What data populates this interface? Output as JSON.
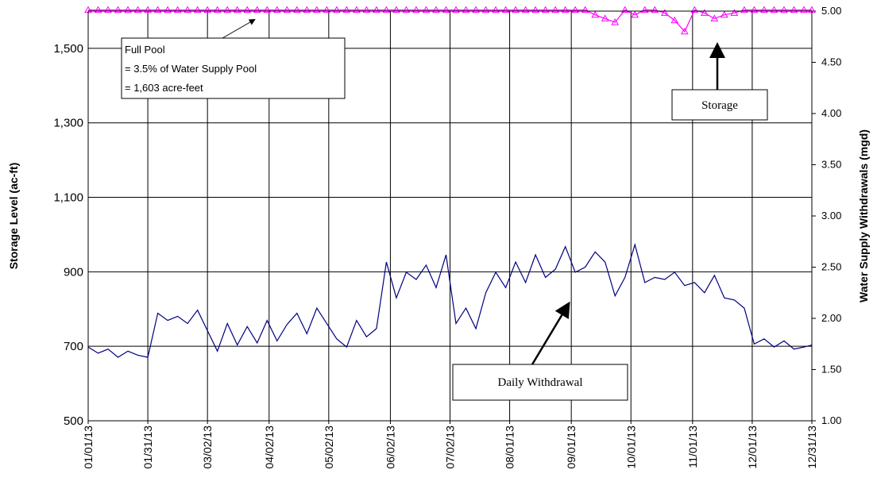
{
  "chart_data": {
    "type": "line",
    "y_label": "Storage Level (ac-ft)",
    "y2_label": "Water Supply Withdrawals (mgd)",
    "x": [
      "01/01/13",
      "01/06/13",
      "01/11/13",
      "01/16/13",
      "01/21/13",
      "01/26/13",
      "01/31/13",
      "02/05/13",
      "02/10/13",
      "02/15/13",
      "02/20/13",
      "02/25/13",
      "03/02/13",
      "03/07/13",
      "03/12/13",
      "03/17/13",
      "03/22/13",
      "03/27/13",
      "04/01/13",
      "04/06/13",
      "04/11/13",
      "04/16/13",
      "04/21/13",
      "04/26/13",
      "05/01/13",
      "05/06/13",
      "05/11/13",
      "05/16/13",
      "05/21/13",
      "05/26/13",
      "05/31/13",
      "06/05/13",
      "06/10/13",
      "06/15/13",
      "06/20/13",
      "06/25/13",
      "06/30/13",
      "07/05/13",
      "07/10/13",
      "07/15/13",
      "07/20/13",
      "07/25/13",
      "07/30/13",
      "08/04/13",
      "08/09/13",
      "08/14/13",
      "08/19/13",
      "08/24/13",
      "08/29/13",
      "09/03/13",
      "09/08/13",
      "09/13/13",
      "09/18/13",
      "09/23/13",
      "09/28/13",
      "10/03/13",
      "10/08/13",
      "10/13/13",
      "10/18/13",
      "10/23/13",
      "10/28/13",
      "11/02/13",
      "11/07/13",
      "11/12/13",
      "11/17/13",
      "11/22/13",
      "11/27/13",
      "12/02/13",
      "12/07/13",
      "12/12/13",
      "12/17/13",
      "12/22/13",
      "12/27/13",
      "12/31/13"
    ],
    "series": [
      {
        "name": "Daily Withdrawal",
        "color": "#000080",
        "axis": "y2",
        "values": [
          1.72,
          1.66,
          1.7,
          1.62,
          1.68,
          1.64,
          1.62,
          2.05,
          1.98,
          2.02,
          1.95,
          2.08,
          1.88,
          1.68,
          1.95,
          1.74,
          1.92,
          1.76,
          1.98,
          1.78,
          1.94,
          2.05,
          1.85,
          2.1,
          1.95,
          1.8,
          1.72,
          1.98,
          1.82,
          1.9,
          2.55,
          2.2,
          2.45,
          2.38,
          2.52,
          2.3,
          2.62,
          1.95,
          2.1,
          1.9,
          2.25,
          2.45,
          2.3,
          2.55,
          2.35,
          2.62,
          2.4,
          2.48,
          2.7,
          2.45,
          2.5,
          2.65,
          2.55,
          2.22,
          2.4,
          2.72,
          2.35,
          2.4,
          2.38,
          2.45,
          2.32,
          2.35,
          2.25,
          2.42,
          2.2,
          2.18,
          2.1,
          1.75,
          1.8,
          1.72,
          1.78,
          1.7,
          1.72,
          1.74
        ]
      },
      {
        "name": "Storage",
        "color": "#ff00ff",
        "marker": "triangle",
        "values": [
          1603,
          1603,
          1603,
          1603,
          1603,
          1603,
          1603,
          1603,
          1603,
          1603,
          1603,
          1603,
          1603,
          1603,
          1603,
          1603,
          1603,
          1603,
          1603,
          1603,
          1603,
          1603,
          1603,
          1603,
          1603,
          1603,
          1603,
          1603,
          1603,
          1603,
          1603,
          1603,
          1603,
          1603,
          1603,
          1603,
          1603,
          1603,
          1603,
          1603,
          1603,
          1603,
          1603,
          1603,
          1603,
          1603,
          1603,
          1603,
          1603,
          1603,
          1603,
          1590,
          1580,
          1570,
          1603,
          1590,
          1603,
          1603,
          1595,
          1575,
          1545,
          1603,
          1595,
          1580,
          1590,
          1595,
          1603,
          1603,
          1603,
          1603,
          1603,
          1603,
          1603,
          1603
        ]
      }
    ],
    "xlim": [
      "01/01/13",
      "12/31/13"
    ],
    "xticks": [
      "01/01/13",
      "01/31/13",
      "03/02/13",
      "04/02/13",
      "05/02/13",
      "06/02/13",
      "07/02/13",
      "08/01/13",
      "09/01/13",
      "10/01/13",
      "11/01/13",
      "12/01/13",
      "12/31/13"
    ],
    "ylim": [
      500,
      1600
    ],
    "yticks": [
      500,
      700,
      900,
      {
        "value": 1100,
        "label": "1,100"
      },
      {
        "value": 1300,
        "label": "1,300"
      },
      {
        "value": 1500,
        "label": "1,500"
      }
    ],
    "y2lim": [
      1,
      5
    ],
    "y2ticks": [
      {
        "value": 1,
        "label": "1.00"
      },
      {
        "value": 1.5,
        "label": "1.50"
      },
      {
        "value": 2,
        "label": "2.00"
      },
      {
        "value": 2.5,
        "label": "2.50"
      },
      {
        "value": 3,
        "label": "3.00"
      },
      {
        "value": 3.5,
        "label": "3.50"
      },
      {
        "value": 4,
        "label": "4.00"
      },
      {
        "value": 4.5,
        "label": "4.50"
      },
      {
        "value": 5,
        "label": "5.00"
      }
    ],
    "grid": true,
    "annotations": [
      "Full Pool",
      "= 3.5% of  Water Supply Pool",
      "= 1,603 acre-feet"
    ]
  }
}
